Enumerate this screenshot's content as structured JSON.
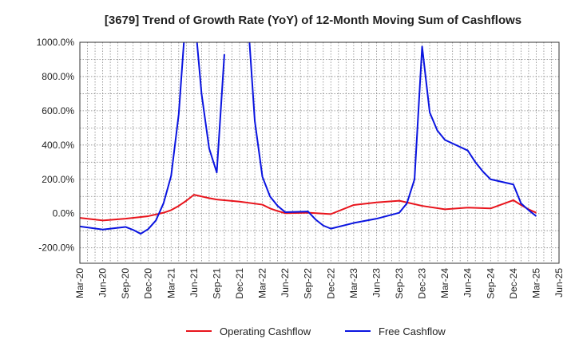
{
  "chart_data": {
    "type": "line",
    "title": "[3679]  Trend of Growth Rate (YoY) of 12-Month Moving Sum of Cashflows",
    "xlabel": "",
    "ylabel": "",
    "ylim": [
      -290,
      1000
    ],
    "y_ticks": [
      -200,
      0,
      200,
      400,
      600,
      800,
      1000
    ],
    "y_tick_labels": [
      "-200.0%",
      "0.0%",
      "200.0%",
      "400.0%",
      "600.0%",
      "800.0%",
      "1000.0%"
    ],
    "x_tick_labels": [
      "Mar-20",
      "Jun-20",
      "Sep-20",
      "Dec-20",
      "Mar-21",
      "Jun-21",
      "Sep-21",
      "Dec-21",
      "Mar-22",
      "Jun-22",
      "Sep-22",
      "Dec-22",
      "Mar-23",
      "Jun-23",
      "Sep-23",
      "Dec-23",
      "Mar-24",
      "Jun-24",
      "Sep-24",
      "Dec-24",
      "Mar-25",
      "Jun-25"
    ],
    "x_range": [
      "2020-03",
      "2025-06"
    ],
    "grid": true,
    "legend_position": "bottom",
    "series": [
      {
        "name": "Operating Cashflow",
        "color": "#e8141c",
        "points": [
          [
            "2020-03",
            -25
          ],
          [
            "2020-06",
            -40
          ],
          [
            "2020-09",
            -30
          ],
          [
            "2020-12",
            -15
          ],
          [
            "2021-01",
            -5
          ],
          [
            "2021-02",
            5
          ],
          [
            "2021-03",
            20
          ],
          [
            "2021-04",
            45
          ],
          [
            "2021-05",
            75
          ],
          [
            "2021-06",
            110
          ],
          [
            "2021-07",
            100
          ],
          [
            "2021-08",
            90
          ],
          [
            "2021-09",
            82
          ],
          [
            "2021-12",
            70
          ],
          [
            "2022-03",
            52
          ],
          [
            "2022-04",
            30
          ],
          [
            "2022-05",
            15
          ],
          [
            "2022-06",
            2
          ],
          [
            "2022-09",
            5
          ],
          [
            "2022-12",
            -3
          ],
          [
            "2023-03",
            50
          ],
          [
            "2023-06",
            65
          ],
          [
            "2023-09",
            75
          ],
          [
            "2023-12",
            45
          ],
          [
            "2024-03",
            25
          ],
          [
            "2024-06",
            35
          ],
          [
            "2024-09",
            30
          ],
          [
            "2024-12",
            78
          ],
          [
            "2025-01",
            50
          ],
          [
            "2025-02",
            25
          ],
          [
            "2025-03",
            5
          ]
        ]
      },
      {
        "name": "Free Cashflow",
        "color": "#0a14e0",
        "points": [
          [
            "2020-03",
            -75
          ],
          [
            "2020-06",
            -93
          ],
          [
            "2020-09",
            -78
          ],
          [
            "2020-10",
            -95
          ],
          [
            "2020-11",
            -118
          ],
          [
            "2020-12",
            -90
          ],
          [
            "2021-01",
            -40
          ],
          [
            "2021-02",
            60
          ],
          [
            "2021-03",
            220
          ],
          [
            "2021-04",
            580
          ],
          [
            "2021-05",
            1200
          ],
          [
            "2021-06",
            1200
          ],
          [
            "2021-07",
            700
          ],
          [
            "2021-08",
            380
          ],
          [
            "2021-09",
            240
          ],
          [
            "2021-10",
            930
          ],
          null,
          [
            "2022-01",
            1200
          ],
          [
            "2022-02",
            540
          ],
          [
            "2022-03",
            215
          ],
          [
            "2022-04",
            100
          ],
          [
            "2022-05",
            45
          ],
          [
            "2022-06",
            8
          ],
          [
            "2022-09",
            12
          ],
          [
            "2022-10",
            -35
          ],
          [
            "2022-11",
            -70
          ],
          [
            "2022-12",
            -88
          ],
          [
            "2023-03",
            -55
          ],
          [
            "2023-06",
            -30
          ],
          [
            "2023-09",
            5
          ],
          [
            "2023-10",
            60
          ],
          [
            "2023-11",
            200
          ],
          [
            "2023-12",
            975
          ],
          [
            "2024-01",
            590
          ],
          [
            "2024-02",
            485
          ],
          [
            "2024-03",
            430
          ],
          [
            "2024-06",
            368
          ],
          [
            "2024-07",
            300
          ],
          [
            "2024-08",
            245
          ],
          [
            "2024-09",
            200
          ],
          [
            "2024-12",
            170
          ],
          [
            "2025-01",
            60
          ],
          [
            "2025-02",
            20
          ],
          [
            "2025-03",
            -15
          ]
        ]
      }
    ]
  }
}
